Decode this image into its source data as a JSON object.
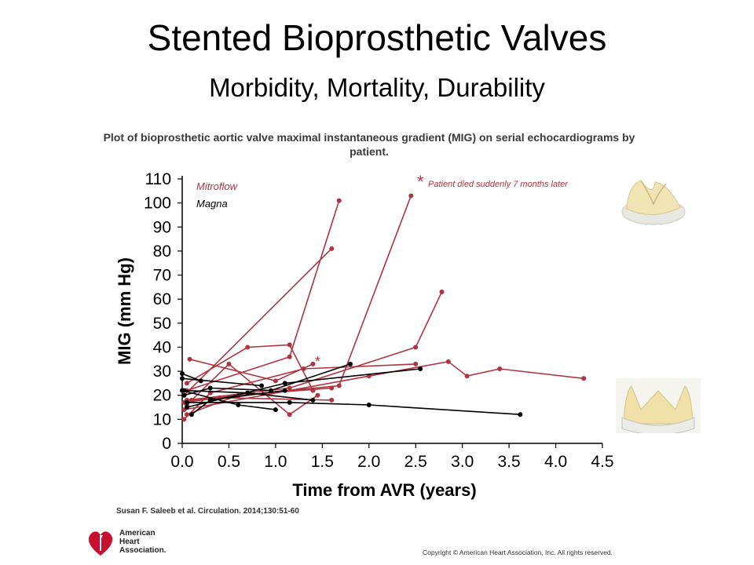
{
  "slide": {
    "title": "Stented Bioprosthetic Valves",
    "subtitle": "Morbidity, Mortality, Durability"
  },
  "chart_data": {
    "type": "line",
    "title": "Plot of bioprosthetic aortic valve maximal instantaneous gradient (MIG) on serial echocardiograms by patient.",
    "xlabel": "Time from AVR (years)",
    "ylabel": "MIG (mm Hg)",
    "xlim": [
      0,
      4.5
    ],
    "ylim": [
      0,
      110
    ],
    "xticks": [
      "0.0",
      "0.5",
      "1.0",
      "1.5",
      "2.0",
      "2.5",
      "3.0",
      "3.5",
      "4.0",
      "4.5"
    ],
    "yticks": [
      "0",
      "10",
      "20",
      "30",
      "40",
      "50",
      "60",
      "70",
      "80",
      "90",
      "100",
      "110"
    ],
    "legend": [
      {
        "name": "Mitroflow",
        "color": "#b0343f"
      },
      {
        "name": "Magna",
        "color": "#000000"
      }
    ],
    "annotation": "Patient died suddenly 7 months later",
    "annotation_marker": "*",
    "grid": false,
    "series": [
      {
        "name": "Mitroflow",
        "color": "#b0343f",
        "points": [
          [
            0.02,
            20
          ],
          [
            1.6,
            81
          ]
        ]
      },
      {
        "name": "Mitroflow",
        "color": "#b0343f",
        "points": [
          [
            0.05,
            22
          ],
          [
            1.15,
            36
          ],
          [
            1.68,
            101
          ]
        ]
      },
      {
        "name": "Mitroflow",
        "color": "#b0343f",
        "points": [
          [
            0.1,
            18
          ],
          [
            1.68,
            24
          ],
          [
            2.45,
            103
          ]
        ]
      },
      {
        "name": "Mitroflow",
        "color": "#b0343f",
        "points": [
          [
            0.05,
            18
          ],
          [
            1.15,
            23
          ],
          [
            2.5,
            40
          ],
          [
            2.78,
            63
          ]
        ]
      },
      {
        "name": "Mitroflow",
        "color": "#b0343f",
        "points": [
          [
            0.05,
            25
          ],
          [
            0.7,
            40
          ],
          [
            1.15,
            41
          ],
          [
            1.4,
            22
          ]
        ]
      },
      {
        "name": "Mitroflow",
        "color": "#b0343f",
        "points": [
          [
            0.08,
            35
          ],
          [
            1.0,
            26
          ],
          [
            1.4,
            33
          ]
        ]
      },
      {
        "name": "Mitroflow",
        "color": "#b0343f",
        "points": [
          [
            0.02,
            14
          ],
          [
            2.0,
            28
          ],
          [
            2.85,
            34
          ],
          [
            3.05,
            28
          ],
          [
            3.4,
            31
          ],
          [
            4.3,
            27
          ]
        ]
      },
      {
        "name": "Mitroflow",
        "color": "#b0343f",
        "points": [
          [
            0.05,
            16
          ],
          [
            0.5,
            33
          ],
          [
            1.15,
            12
          ],
          [
            1.45,
            20
          ]
        ]
      },
      {
        "name": "Mitroflow",
        "color": "#b0343f",
        "points": [
          [
            0.02,
            10
          ],
          [
            0.3,
            21
          ],
          [
            1.3,
            31
          ],
          [
            2.5,
            33
          ]
        ]
      },
      {
        "name": "Mitroflow",
        "color": "#b0343f",
        "points": [
          [
            0.05,
            12
          ],
          [
            0.6,
            20
          ],
          [
            1.6,
            23
          ]
        ]
      },
      {
        "name": "Mitroflow",
        "color": "#b0343f",
        "points": [
          [
            0.02,
            17
          ],
          [
            0.4,
            19
          ],
          [
            1.6,
            18
          ]
        ]
      },
      {
        "name": "Magna",
        "color": "#000000",
        "points": [
          [
            0.0,
            27
          ],
          [
            0.85,
            24
          ]
        ]
      },
      {
        "name": "Magna",
        "color": "#000000",
        "points": [
          [
            0.02,
            20
          ],
          [
            0.3,
            23
          ],
          [
            0.95,
            22
          ],
          [
            1.8,
            33
          ]
        ]
      },
      {
        "name": "Magna",
        "color": "#000000",
        "points": [
          [
            0.05,
            17
          ],
          [
            1.15,
            17
          ],
          [
            2.0,
            16
          ],
          [
            3.62,
            12
          ]
        ]
      },
      {
        "name": "Magna",
        "color": "#000000",
        "points": [
          [
            0.0,
            22
          ],
          [
            0.6,
            16
          ],
          [
            1.0,
            14
          ]
        ]
      },
      {
        "name": "Magna",
        "color": "#000000",
        "points": [
          [
            0.05,
            15
          ],
          [
            1.1,
            25
          ],
          [
            2.55,
            31
          ]
        ]
      },
      {
        "name": "Magna",
        "color": "#000000",
        "points": [
          [
            0.0,
            29
          ],
          [
            0.2,
            26
          ]
        ]
      },
      {
        "name": "Magna",
        "color": "#000000",
        "points": [
          [
            0.1,
            12
          ],
          [
            0.3,
            18
          ],
          [
            1.1,
            22
          ]
        ]
      },
      {
        "name": "Magna",
        "color": "#000000",
        "points": [
          [
            0.02,
            22
          ],
          [
            0.7,
            21
          ],
          [
            1.4,
            18
          ]
        ]
      }
    ]
  },
  "citation": "Susan F. Saleeb et al. Circulation. 2014;130:51-60",
  "logo": {
    "text_line1": "American",
    "text_line2": "Heart",
    "text_line3": "Association.",
    "heart_color": "#c8102e"
  },
  "copyright": "Copyright © American Heart Association, Inc. All rights reserved."
}
